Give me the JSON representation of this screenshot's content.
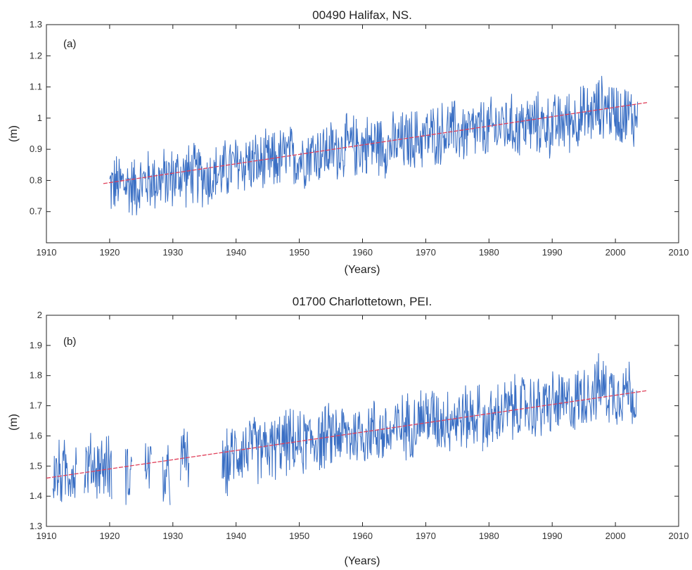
{
  "chart_data": [
    {
      "type": "line",
      "title": "00490 Halifax, NS.",
      "panel_label": "(a)",
      "xlabel": "(Years)",
      "ylabel": "(m)",
      "xlim": [
        1910,
        2010
      ],
      "ylim": [
        0.6,
        1.3
      ],
      "xticks": [
        "1910",
        "1920",
        "1930",
        "1940",
        "1950",
        "1960",
        "1970",
        "1980",
        "1990",
        "2000",
        "2010"
      ],
      "yticks": [
        "0.7",
        "0.8",
        "0.9",
        "1",
        "1.1",
        "1.2",
        "1.3"
      ],
      "grid": false,
      "colors": {
        "series": "#3a6fc4",
        "trend": "#e0405a"
      },
      "series": [
        {
          "style": "monthly",
          "segments": [
            [
              1920.0,
              2003.5
            ]
          ],
          "x": [
            1920,
            1922,
            1924,
            1926,
            1928,
            1930,
            1932,
            1934,
            1936,
            1938,
            1940,
            1942,
            1944,
            1946,
            1948,
            1950,
            1952,
            1954,
            1956,
            1958,
            1960,
            1962,
            1964,
            1966,
            1968,
            1970,
            1972,
            1974,
            1976,
            1978,
            1980,
            1982,
            1984,
            1986,
            1988,
            1990,
            1992,
            1994,
            1996,
            1998,
            2000,
            2002,
            2003
          ],
          "y": [
            0.78,
            0.79,
            0.78,
            0.8,
            0.8,
            0.81,
            0.82,
            0.82,
            0.81,
            0.83,
            0.85,
            0.86,
            0.85,
            0.86,
            0.88,
            0.87,
            0.89,
            0.89,
            0.9,
            0.91,
            0.91,
            0.92,
            0.91,
            0.92,
            0.93,
            0.94,
            0.95,
            0.96,
            0.95,
            0.96,
            0.96,
            0.98,
            0.97,
            0.98,
            0.98,
            0.97,
            0.99,
            1.0,
            1.01,
            1.04,
            1.02,
            1.01,
            1.0
          ],
          "ymin": 0.67,
          "ymax": 1.16
        },
        {
          "style": "trend",
          "x": [
            1919,
            2005
          ],
          "y": [
            0.79,
            1.05
          ]
        }
      ]
    },
    {
      "type": "line",
      "title": "01700 Charlottetown, PEI.",
      "panel_label": "(b)",
      "xlabel": "(Years)",
      "ylabel": "(m)",
      "xlim": [
        1910,
        2010
      ],
      "ylim": [
        1.3,
        2.0
      ],
      "xticks": [
        "1910",
        "1920",
        "1930",
        "1940",
        "1950",
        "1960",
        "1970",
        "1980",
        "1990",
        "2000",
        "2010"
      ],
      "yticks": [
        "1.3",
        "1.4",
        "1.5",
        "1.6",
        "1.7",
        "1.8",
        "1.9",
        "2"
      ],
      "grid": false,
      "colors": {
        "series": "#3a6fc4",
        "trend": "#e0405a"
      },
      "series": [
        {
          "style": "monthly",
          "segments": [
            [
              1911.0,
              1914.8
            ],
            [
              1916.0,
              1920.4
            ],
            [
              1922.5,
              1923.5
            ],
            [
              1925.6,
              1926.6
            ],
            [
              1928.4,
              1929.6
            ],
            [
              1931.2,
              1932.6
            ],
            [
              1937.8,
              1978.6
            ],
            [
              1979.0,
              2003.4
            ]
          ],
          "x": [
            1911,
            1913,
            1915,
            1917,
            1919,
            1923,
            1926,
            1929,
            1932,
            1938,
            1940,
            1942,
            1944,
            1946,
            1948,
            1950,
            1952,
            1954,
            1956,
            1958,
            1960,
            1962,
            1964,
            1966,
            1968,
            1970,
            1972,
            1974,
            1976,
            1978,
            1980,
            1982,
            1984,
            1986,
            1988,
            1990,
            1992,
            1994,
            1996,
            1998,
            2000,
            2002,
            2003
          ],
          "y": [
            1.47,
            1.48,
            1.49,
            1.5,
            1.5,
            1.48,
            1.51,
            1.45,
            1.53,
            1.49,
            1.55,
            1.56,
            1.55,
            1.56,
            1.58,
            1.57,
            1.59,
            1.59,
            1.61,
            1.6,
            1.61,
            1.62,
            1.6,
            1.63,
            1.64,
            1.67,
            1.65,
            1.66,
            1.66,
            1.67,
            1.64,
            1.68,
            1.69,
            1.7,
            1.69,
            1.71,
            1.7,
            1.72,
            1.75,
            1.76,
            1.74,
            1.76,
            1.72
          ],
          "ymin": 1.36,
          "ymax": 1.89
        },
        {
          "style": "trend",
          "x": [
            1910,
            2005
          ],
          "y": [
            1.46,
            1.75
          ]
        }
      ]
    }
  ]
}
